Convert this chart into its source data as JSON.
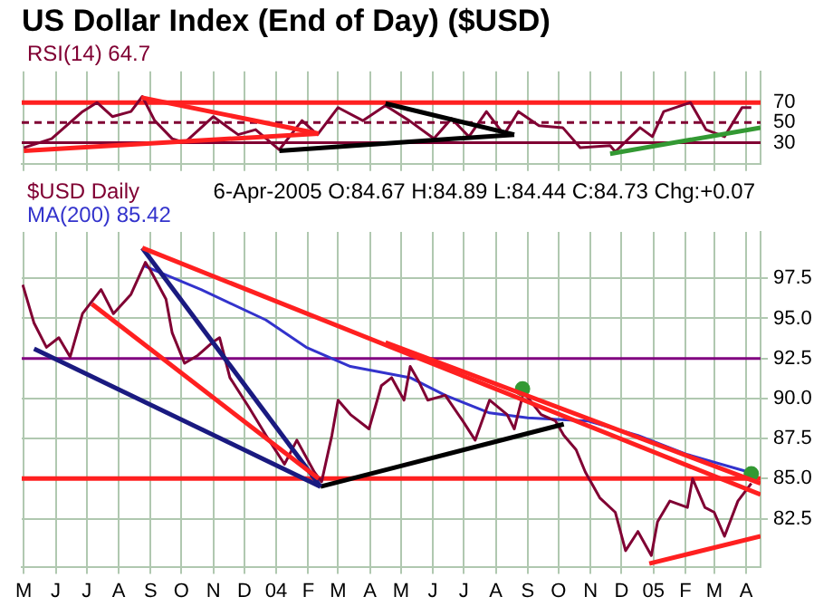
{
  "chart_data": [
    {
      "type": "line",
      "title": "US Dollar Index (End of Day) ($USD)",
      "xlim": [
        "2003-04-29",
        "2005-04-15"
      ],
      "ylim": [
        9,
        101
      ],
      "yticks": [
        30,
        50,
        70
      ],
      "grid": "x",
      "legend": "top left",
      "tick_labels": "y",
      "xticks": [
        {
          "value": "2003-05-01",
          "label": null
        },
        {
          "value": "2003-06-01",
          "label": null
        },
        {
          "value": "2003-07-01",
          "label": null
        },
        {
          "value": "2003-08-01",
          "label": null
        },
        {
          "value": "2003-09-01",
          "label": null
        },
        {
          "value": "2003-10-01",
          "label": null
        },
        {
          "value": "2003-11-01",
          "label": null
        },
        {
          "value": "2003-12-01",
          "label": null
        },
        {
          "value": "2004-01-01",
          "label": null
        },
        {
          "value": "2004-02-01",
          "label": null
        },
        {
          "value": "2004-03-01",
          "label": null
        },
        {
          "value": "2004-04-01",
          "label": null
        },
        {
          "value": "2004-05-01",
          "label": null
        },
        {
          "value": "2004-06-01",
          "label": null
        },
        {
          "value": "2004-07-01",
          "label": null
        },
        {
          "value": "2004-08-01",
          "label": null
        },
        {
          "value": "2004-09-01",
          "label": null
        },
        {
          "value": "2004-10-01",
          "label": null
        },
        {
          "value": "2004-11-01",
          "label": null
        },
        {
          "value": "2004-12-01",
          "label": null
        },
        {
          "value": "2005-01-01",
          "label": null
        },
        {
          "value": "2005-02-01",
          "label": null
        },
        {
          "value": "2005-03-01",
          "label": null
        },
        {
          "value": "2005-04-01",
          "label": null
        }
      ],
      "ref_lines": [
        {
          "axis": "y",
          "value": 70,
          "color": "#ff2020"
        },
        {
          "axis": "y",
          "value": 50,
          "color": "#800033",
          "line_style": "dashed"
        },
        {
          "axis": "y",
          "value": 30,
          "color": "#800033"
        }
      ],
      "series": [
        {
          "name": "RSI(14) 64.7",
          "color": "#800033",
          "x": [
            "2003-05-01",
            "2003-05-28",
            "2003-06-27",
            "2003-07-11",
            "2003-07-26",
            "2003-08-13",
            "2003-08-24",
            "2003-09-05",
            "2003-09-22",
            "2003-10-04",
            "2003-11-01",
            "2003-11-25",
            "2003-12-12",
            "2004-01-04",
            "2004-01-26",
            "2004-02-10",
            "2004-03-01",
            "2004-03-25",
            "2004-04-16",
            "2004-05-09",
            "2004-06-02",
            "2004-06-19",
            "2004-07-06",
            "2004-07-23",
            "2004-08-09",
            "2004-08-23",
            "2004-09-12",
            "2004-10-05",
            "2004-10-22",
            "2004-11-20",
            "2004-11-25",
            "2004-12-19",
            "2004-12-31",
            "2005-01-11",
            "2005-02-06",
            "2005-02-21",
            "2005-03-11",
            "2005-03-28",
            "2005-04-06"
          ],
          "values": [
            25,
            34,
            61,
            70,
            56,
            61,
            76,
            52,
            34,
            30,
            56,
            38,
            43,
            23,
            52,
            38,
            65,
            52,
            67,
            52,
            34,
            54,
            36,
            61,
            38,
            61,
            47,
            45,
            25,
            27,
            21,
            45,
            36,
            61,
            70,
            43,
            36,
            65,
            65
          ]
        },
        {
          "type": "line",
          "color": "#ff2020",
          "x": [
            "2003-05-01",
            "2004-02-11"
          ],
          "values": [
            22,
            39
          ]
        },
        {
          "type": "line",
          "color": "#ff2020",
          "x": [
            "2003-08-23",
            "2004-02-11"
          ],
          "values": [
            75,
            39
          ]
        },
        {
          "type": "line",
          "color": "#000000",
          "x": [
            "2004-01-04",
            "2004-08-19"
          ],
          "values": [
            22,
            38
          ]
        },
        {
          "type": "line",
          "color": "#000000",
          "x": [
            "2004-04-16",
            "2004-08-19"
          ],
          "values": [
            69,
            38
          ]
        },
        {
          "type": "line",
          "color": "#339933",
          "x": [
            "2004-11-20",
            "2005-04-15"
          ],
          "values": [
            19,
            45
          ]
        }
      ]
    },
    {
      "type": "line",
      "xlim": [
        "2003-04-29",
        "2005-04-15"
      ],
      "ylim": [
        79.5,
        100.4
      ],
      "grid": true,
      "legend": "top left",
      "yticks": [
        82.5,
        {
          "value": 85,
          "label": "85.0"
        },
        87.5,
        {
          "value": 90,
          "label": "90.0"
        },
        92.5,
        {
          "value": 95,
          "label": "95.0"
        },
        97.5
      ],
      "xticks": [
        {
          "value": "2003-05-01",
          "label": "M"
        },
        {
          "value": "2003-06-01",
          "label": "J"
        },
        {
          "value": "2003-07-01",
          "label": "J"
        },
        {
          "value": "2003-08-01",
          "label": "A"
        },
        {
          "value": "2003-09-01",
          "label": "S"
        },
        {
          "value": "2003-10-01",
          "label": "O"
        },
        {
          "value": "2003-11-01",
          "label": "N"
        },
        {
          "value": "2003-12-01",
          "label": "D"
        },
        {
          "value": "2004-01-01",
          "label": "04"
        },
        {
          "value": "2004-02-01",
          "label": "F"
        },
        {
          "value": "2004-03-01",
          "label": "M"
        },
        {
          "value": "2004-04-01",
          "label": "A"
        },
        {
          "value": "2004-05-01",
          "label": "M"
        },
        {
          "value": "2004-06-01",
          "label": "J"
        },
        {
          "value": "2004-07-01",
          "label": "J"
        },
        {
          "value": "2004-08-01",
          "label": "A"
        },
        {
          "value": "2004-09-01",
          "label": "S"
        },
        {
          "value": "2004-10-01",
          "label": "O"
        },
        {
          "value": "2004-11-01",
          "label": "N"
        },
        {
          "value": "2004-12-01",
          "label": "D"
        },
        {
          "value": "2005-01-01",
          "label": "05"
        },
        {
          "value": "2005-02-01",
          "label": "F"
        },
        {
          "value": "2005-03-01",
          "label": "M"
        },
        {
          "value": "2005-04-01",
          "label": "A"
        }
      ],
      "annotations": [
        "6-Apr-2005 O:84.67 H:84.89 L:84.44 C:84.73 Chg:+0.07"
      ],
      "ref_lines": [
        {
          "axis": "y",
          "value": 92.5,
          "color": "#800080"
        },
        {
          "axis": "y",
          "value": 85,
          "color": "#ff2020"
        }
      ],
      "series": [
        {
          "name": "$USD Daily",
          "color": "#800033",
          "x": [
            "2003-04-30",
            "2003-05-11",
            "2003-05-23",
            "2003-06-04",
            "2003-06-15",
            "2003-06-27",
            "2003-07-15",
            "2003-07-27",
            "2003-08-13",
            "2003-08-27",
            "2003-09-01",
            "2003-09-16",
            "2003-09-22",
            "2003-10-04",
            "2003-10-17",
            "2003-10-31",
            "2003-11-07",
            "2003-11-17",
            "2003-12-05",
            "2003-12-22",
            "2004-01-09",
            "2004-01-21",
            "2004-02-07",
            "2004-02-14",
            "2004-02-24",
            "2004-03-01",
            "2004-03-13",
            "2004-03-31",
            "2004-04-12",
            "2004-04-22",
            "2004-05-04",
            "2004-05-10",
            "2004-05-18",
            "2004-05-27",
            "2004-06-13",
            "2004-06-30",
            "2004-07-12",
            "2004-07-26",
            "2004-08-12",
            "2004-08-19",
            "2004-08-28",
            "2004-09-14",
            "2004-09-28",
            "2004-10-06",
            "2004-10-18",
            "2004-10-27",
            "2004-11-10",
            "2004-11-25",
            "2004-12-05",
            "2004-12-17",
            "2004-12-30",
            "2005-01-05",
            "2005-01-17",
            "2005-02-03",
            "2005-02-08",
            "2005-02-20",
            "2005-03-01",
            "2005-03-11",
            "2005-03-24",
            "2005-04-06"
          ],
          "values": [
            97.1,
            94.7,
            93.2,
            93.8,
            92.6,
            95.3,
            96.8,
            95.3,
            96.5,
            98.5,
            98.0,
            96.2,
            94.1,
            92.2,
            92.7,
            93.5,
            93.8,
            91.3,
            89.5,
            87.7,
            85.9,
            87.4,
            85.4,
            84.8,
            87.7,
            89.9,
            89.0,
            88.1,
            90.8,
            91.3,
            89.9,
            92.0,
            91.1,
            89.9,
            90.2,
            88.6,
            87.4,
            89.9,
            89.0,
            88.1,
            90.4,
            89.0,
            88.6,
            87.7,
            86.8,
            85.4,
            83.8,
            82.9,
            80.5,
            81.7,
            80.2,
            82.3,
            83.6,
            83.2,
            85.0,
            83.2,
            82.9,
            81.4,
            83.6,
            84.7
          ]
        },
        {
          "name": "MA(200) 85.42",
          "color": "#3333cc",
          "x": [
            "2003-08-25",
            "2003-10-20",
            "2003-12-22",
            "2004-01-30",
            "2004-03-13",
            "2004-05-10",
            "2004-06-13",
            "2004-07-26",
            "2004-09-01",
            "2004-10-29",
            "2004-12-17",
            "2005-02-03",
            "2005-04-04"
          ],
          "values": [
            98.3,
            96.8,
            94.9,
            93.2,
            92.0,
            91.3,
            90.2,
            89.1,
            88.8,
            88.6,
            87.7,
            86.5,
            85.4
          ]
        },
        {
          "type": "line",
          "color": "#ff2020",
          "x": [
            "2003-08-24",
            "2005-04-15"
          ],
          "values": [
            99.4,
            84.0
          ]
        },
        {
          "type": "line",
          "color": "#ff2020",
          "x": [
            "2004-04-16",
            "2005-04-15"
          ],
          "values": [
            93.5,
            84.7
          ]
        },
        {
          "type": "line",
          "color": "#ff2020",
          "x": [
            "2003-07-06",
            "2004-02-11"
          ],
          "values": [
            95.9,
            85.0
          ]
        },
        {
          "type": "line",
          "color": "#1a1a80",
          "x": [
            "2003-08-24",
            "2004-02-13"
          ],
          "values": [
            99.4,
            84.5
          ]
        },
        {
          "type": "line",
          "color": "#1a1a80",
          "x": [
            "2003-05-11",
            "2004-02-13"
          ],
          "values": [
            93.1,
            84.5
          ]
        },
        {
          "type": "line",
          "color": "#000000",
          "x": [
            "2004-02-13",
            "2004-10-06"
          ],
          "values": [
            84.5,
            88.4
          ]
        },
        {
          "type": "line",
          "color": "#ff2020",
          "x": [
            "2004-12-28",
            "2005-04-15"
          ],
          "values": [
            79.7,
            81.4
          ]
        },
        {
          "type": "scatter",
          "color": "#339933",
          "marker": "circle",
          "x": [
            "2004-08-27",
            "2005-04-06"
          ],
          "values": [
            90.6,
            85.3
          ]
        }
      ]
    }
  ]
}
